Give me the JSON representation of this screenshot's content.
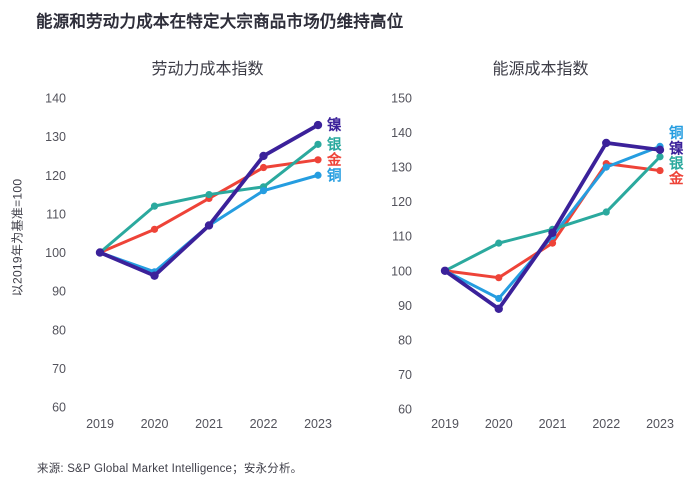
{
  "page": {
    "title": "能源和劳动力成本在特定大宗商品市场仍维持高位",
    "y_axis_label": "以2019年为基准=100",
    "source": "来源: S&P Global Market Intelligence；安永分析。"
  },
  "colors": {
    "nickel": "#3b219a",
    "silver": "#2ba99e",
    "gold": "#ee4338",
    "copper": "#259de0",
    "title_text": "#2e2e3a",
    "axis_text": "#53535c"
  },
  "chart_data": [
    {
      "id": "labor",
      "type": "line",
      "title": "劳动力成本指数",
      "x": [
        "2019",
        "2020",
        "2021",
        "2022",
        "2023"
      ],
      "ylim": [
        60,
        140
      ],
      "ytick_step": 10,
      "grid": false,
      "legend_position": "right-of-line-ends",
      "series": [
        {
          "name": "金",
          "color_key": "gold",
          "values": [
            100,
            106,
            114,
            122,
            124
          ]
        },
        {
          "name": "银",
          "color_key": "silver",
          "values": [
            100,
            112,
            115,
            117,
            128
          ]
        },
        {
          "name": "铜",
          "color_key": "copper",
          "values": [
            100,
            95,
            107,
            116,
            120
          ]
        },
        {
          "name": "镍",
          "color_key": "nickel",
          "values": [
            100,
            94,
            107,
            125,
            133
          ]
        }
      ]
    },
    {
      "id": "energy",
      "type": "line",
      "title": "能源成本指数",
      "x": [
        "2019",
        "2020",
        "2021",
        "2022",
        "2023"
      ],
      "ylim": [
        60,
        150
      ],
      "ytick_step": 10,
      "grid": false,
      "legend_position": "right-of-line-ends",
      "series": [
        {
          "name": "金",
          "color_key": "gold",
          "values": [
            100,
            98,
            108,
            131,
            129
          ]
        },
        {
          "name": "铜",
          "color_key": "copper",
          "values": [
            100,
            92,
            110,
            130,
            136
          ]
        },
        {
          "name": "银",
          "color_key": "silver",
          "values": [
            100,
            108,
            112,
            117,
            133
          ]
        },
        {
          "name": "镍",
          "color_key": "nickel",
          "values": [
            100,
            89,
            111,
            137,
            135
          ]
        }
      ]
    }
  ]
}
